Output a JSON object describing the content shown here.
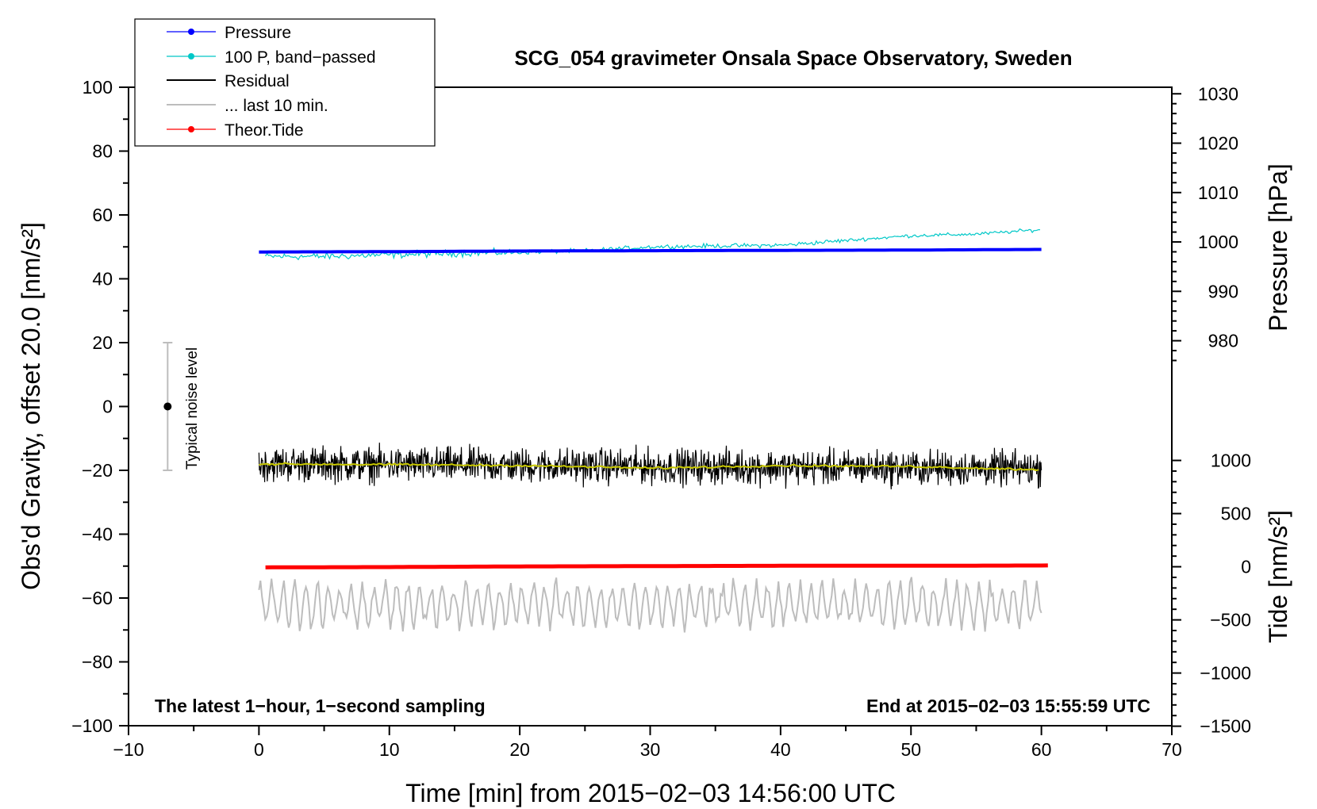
{
  "chart_data": {
    "type": "line",
    "title": "SCG_054 gravimeter Onsala Space Observatory, Sweden",
    "xlabel": "Time [min] from 2015−02−03 14:56:00 UTC",
    "ylabel_left": "Obs'd Gravity, offset 20.0 [nm/s²]",
    "ylabel_right_top": "Pressure [hPa]",
    "ylabel_right_bottom": "Tide [nm/s²]",
    "xlim": [
      -10,
      70
    ],
    "ylim_left": [
      -100,
      100
    ],
    "x_ticks": [
      "−10",
      "0",
      "10",
      "20",
      "30",
      "40",
      "50",
      "60",
      "70"
    ],
    "x_tick_values": [
      -10,
      0,
      10,
      20,
      30,
      40,
      50,
      60,
      70
    ],
    "y_left_ticks": [
      "−100",
      "−80",
      "−60",
      "−40",
      "−20",
      "0",
      "20",
      "40",
      "60",
      "80",
      "100"
    ],
    "y_left_tick_values": [
      -100,
      -80,
      -60,
      -40,
      -20,
      0,
      20,
      40,
      60,
      80,
      100
    ],
    "pressure_axis": {
      "ticks": [
        "980",
        "990",
        "1000",
        "1010",
        "1020",
        "1030"
      ],
      "tick_values": [
        980,
        990,
        1000,
        1010,
        1020,
        1030
      ],
      "left_equivalent_of_980": 20.6,
      "left_units_per_hPa": 1.547
    },
    "tide_axis": {
      "ticks": [
        "−1500",
        "−1000",
        "−500",
        "0",
        "500",
        "1000"
      ],
      "tick_values": [
        -1500,
        -1000,
        -500,
        0,
        500,
        1000
      ],
      "left_equivalent_of_0": -50.2,
      "left_units_per_nm_s2": 0.0333
    },
    "legend": [
      {
        "label": "Pressure",
        "color": "#0000ff",
        "marker": true
      },
      {
        "label": "100 P, band−passed",
        "color": "#00c8c8",
        "marker": true
      },
      {
        "label": "Residual",
        "color": "#000000",
        "marker": false
      },
      {
        "label": "... last 10 min.",
        "color": "#bdbdbd",
        "marker": false
      },
      {
        "label": "Theor.Tide",
        "color": "#ff0000",
        "marker": true
      }
    ],
    "annotations": {
      "left": "The latest 1−hour, 1−second sampling",
      "right": "End at 2015−02−03 15:55:59 UTC",
      "noise_label": "Typical noise level"
    },
    "noise_bar": {
      "x": -7,
      "center": 0,
      "low": -20,
      "high": 20
    },
    "series": [
      {
        "name": "Pressure",
        "color": "#0000ff",
        "x": [
          0,
          10,
          20,
          30,
          40,
          50,
          60
        ],
        "values": [
          48.4,
          48.5,
          48.7,
          48.8,
          48.9,
          49.0,
          49.2
        ]
      },
      {
        "name": "100 P, band−passed",
        "color": "#00c8c8",
        "x": [
          0,
          5,
          10,
          15,
          20,
          25,
          30,
          35,
          40,
          45,
          50,
          55,
          60
        ],
        "values": [
          47,
          47,
          47.5,
          48,
          48.3,
          48.8,
          50,
          50.3,
          50.5,
          52,
          53.5,
          54,
          55.4
        ]
      },
      {
        "name": "Residual",
        "color": "#000000",
        "x": [
          0,
          60
        ],
        "values": [
          -18,
          -19.5
        ],
        "noise_amplitude": 8
      },
      {
        "name": "Residual smoothed",
        "color": "#c8c800",
        "x": [
          0,
          10,
          20,
          30,
          40,
          50,
          60
        ],
        "values": [
          -18,
          -18.2,
          -18.5,
          -19.3,
          -18.5,
          -18.8,
          -19.8
        ]
      },
      {
        "name": "... last 10 min.",
        "color": "#bdbdbd",
        "x": [
          0,
          60
        ],
        "values": [
          -62,
          -62
        ],
        "noise_amplitude": 8
      },
      {
        "name": "Theor.Tide",
        "color": "#ff0000",
        "x": [
          0.5,
          10,
          20,
          30,
          40,
          50,
          60.5
        ],
        "values": [
          -50.4,
          -50.3,
          -50.1,
          -50.0,
          -49.9,
          -49.9,
          -49.8
        ]
      }
    ]
  }
}
